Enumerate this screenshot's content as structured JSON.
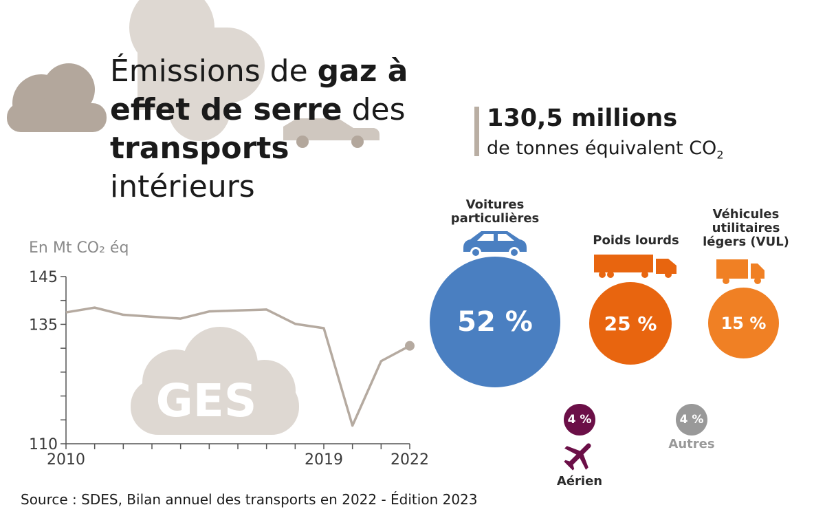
{
  "title": {
    "part1": "Émissions de ",
    "bold1": "gaz à effet de serre",
    "part2": " des ",
    "bold2": "transports",
    "part3": " intérieurs"
  },
  "total": {
    "value": "130,5 millions",
    "unit_prefix": "de tonnes équivalent CO",
    "unit_sub": "2"
  },
  "illustration": {
    "cloud_text": "GES"
  },
  "colors": {
    "line": "#b5aaa0",
    "cloud_dark": "#b3a79c",
    "cloud_light": "#ded8d2",
    "blue": "#4a7fc1",
    "orange_dark": "#e8650f",
    "orange_light": "#f08024",
    "purple": "#6b0f47",
    "grey": "#999999"
  },
  "chart_data": [
    {
      "type": "line",
      "ylabel": "En Mt CO₂ éq",
      "ylim": [
        110,
        145
      ],
      "yticks": [
        145,
        135,
        110
      ],
      "x_tick_labels": [
        "2010",
        "2019",
        "2022"
      ],
      "x": [
        2010,
        2011,
        2012,
        2013,
        2014,
        2015,
        2016,
        2017,
        2018,
        2019,
        2020,
        2021,
        2022
      ],
      "series": [
        {
          "values": [
            137.5,
            138.5,
            137,
            136.6,
            136.2,
            137.7,
            137.9,
            138.1,
            135.1,
            134.2,
            113.8,
            127.3,
            130.5
          ]
        }
      ]
    },
    {
      "type": "pie",
      "categories": [
        "Voitures particulières",
        "Poids lourds",
        "Véhicules utilitaires légers (VUL)",
        "Aérien",
        "Autres"
      ],
      "values": [
        52,
        25,
        15,
        4,
        4
      ],
      "labels": [
        "52 %",
        "25 %",
        "15 %",
        "4 %",
        "4 %"
      ]
    }
  ],
  "source": "Source : SDES, Bilan annuel des transports en 2022 - Édition 2023"
}
